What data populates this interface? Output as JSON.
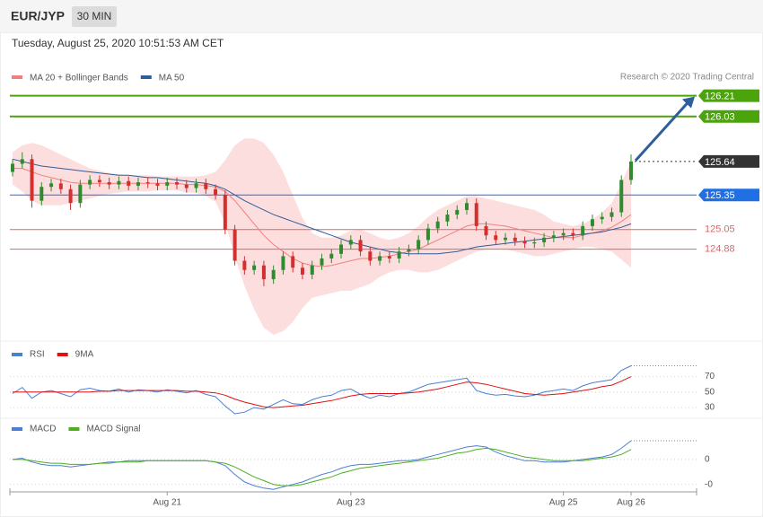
{
  "chart_data": [
    {
      "type": "candlestick",
      "title": "EUR/JYP",
      "timeframe": "30 MIN",
      "subtitle": "Tuesday, August 25, 2020 10:51:53 AM CET",
      "source": "Research © 2020 Trading Central",
      "categories": [
        null,
        null,
        null,
        null,
        null,
        null,
        null,
        null,
        null,
        null,
        null,
        null,
        null,
        null,
        null,
        null,
        "Aug 21",
        null,
        null,
        null,
        null,
        null,
        null,
        null,
        null,
        null,
        null,
        null,
        null,
        null,
        null,
        null,
        null,
        null,
        null,
        "Aug 23",
        null,
        null,
        null,
        null,
        null,
        null,
        null,
        null,
        null,
        null,
        null,
        null,
        null,
        null,
        null,
        null,
        null,
        null,
        null,
        null,
        null,
        "Aug 25",
        null,
        null,
        null,
        null,
        null,
        null,
        "Aug 26"
      ],
      "open": [
        125.55,
        125.62,
        125.66,
        125.3,
        125.42,
        125.45,
        125.4,
        125.28,
        125.44,
        125.48,
        125.46,
        125.44,
        125.47,
        125.43,
        125.46,
        125.45,
        125.43,
        125.46,
        125.44,
        125.41,
        125.45,
        125.4,
        125.35,
        125.05,
        124.78,
        124.7,
        124.74,
        124.62,
        124.7,
        124.82,
        124.72,
        124.66,
        124.74,
        124.8,
        124.84,
        124.92,
        124.96,
        124.86,
        124.78,
        124.82,
        124.8,
        124.86,
        124.88,
        124.96,
        125.06,
        125.12,
        125.18,
        125.22,
        125.28,
        125.08,
        125.0,
        124.96,
        124.98,
        124.95,
        124.93,
        124.94,
        124.98,
        125.0,
        125.02,
        125.0,
        125.08,
        125.14,
        125.16,
        125.2,
        125.48
      ],
      "high": [
        125.66,
        125.72,
        125.7,
        125.46,
        125.49,
        125.49,
        125.44,
        125.48,
        125.52,
        125.52,
        125.5,
        125.51,
        125.51,
        125.5,
        125.5,
        125.49,
        125.5,
        125.5,
        125.48,
        125.49,
        125.49,
        125.44,
        125.39,
        125.09,
        124.82,
        124.78,
        124.78,
        124.74,
        124.86,
        124.86,
        124.76,
        124.78,
        124.84,
        124.88,
        124.96,
        125.0,
        125.0,
        124.9,
        124.86,
        124.86,
        124.9,
        124.92,
        125.0,
        125.1,
        125.16,
        125.22,
        125.26,
        125.32,
        125.32,
        125.12,
        125.04,
        125.02,
        125.02,
        124.99,
        124.98,
        125.02,
        125.04,
        125.06,
        125.06,
        125.12,
        125.18,
        125.2,
        125.24,
        125.52,
        125.7
      ],
      "low": [
        125.51,
        125.58,
        125.24,
        125.26,
        125.38,
        125.36,
        125.22,
        125.24,
        125.4,
        125.42,
        125.4,
        125.4,
        125.39,
        125.39,
        125.41,
        125.39,
        125.39,
        125.4,
        125.37,
        125.37,
        125.36,
        125.31,
        125.01,
        124.74,
        124.66,
        124.66,
        124.56,
        124.58,
        124.66,
        124.68,
        124.62,
        124.62,
        124.7,
        124.76,
        124.8,
        124.88,
        124.82,
        124.74,
        124.74,
        124.76,
        124.76,
        124.82,
        124.84,
        124.92,
        125.02,
        125.08,
        125.14,
        125.18,
        125.04,
        124.96,
        124.92,
        124.92,
        124.91,
        124.89,
        124.89,
        124.9,
        124.94,
        124.96,
        124.96,
        124.96,
        125.04,
        125.1,
        125.12,
        125.16,
        125.44
      ],
      "close": [
        125.62,
        125.66,
        125.3,
        125.42,
        125.45,
        125.4,
        125.28,
        125.44,
        125.48,
        125.46,
        125.44,
        125.47,
        125.43,
        125.46,
        125.45,
        125.43,
        125.46,
        125.44,
        125.41,
        125.45,
        125.4,
        125.35,
        125.05,
        124.78,
        124.7,
        124.74,
        124.62,
        124.7,
        124.82,
        124.72,
        124.66,
        124.74,
        124.8,
        124.84,
        124.92,
        124.96,
        124.86,
        124.78,
        124.82,
        124.8,
        124.86,
        124.88,
        124.96,
        125.06,
        125.12,
        125.18,
        125.22,
        125.28,
        125.08,
        125.0,
        124.96,
        124.98,
        124.95,
        124.93,
        124.94,
        124.98,
        125.0,
        125.02,
        125.0,
        125.08,
        125.14,
        125.16,
        125.2,
        125.48,
        125.64
      ],
      "up_color": "#2e8b2e",
      "down_color": "#d32f2f",
      "series": [
        {
          "name": "MA 20 + Bollinger Bands",
          "color": "#f08080",
          "band_color": "#fddede",
          "values": [
            125.58,
            125.58,
            125.55,
            125.52,
            125.5,
            125.48,
            125.46,
            125.45,
            125.45,
            125.45,
            125.45,
            125.45,
            125.45,
            125.45,
            125.45,
            125.45,
            125.45,
            125.45,
            125.44,
            125.44,
            125.43,
            125.42,
            125.38,
            125.3,
            125.2,
            125.1,
            125.0,
            124.92,
            124.86,
            124.8,
            124.76,
            124.74,
            124.73,
            124.74,
            124.76,
            124.78,
            124.8,
            124.8,
            124.81,
            124.82,
            124.84,
            124.86,
            124.88,
            124.92,
            124.96,
            125.0,
            125.04,
            125.08,
            125.1,
            125.1,
            125.09,
            125.08,
            125.06,
            125.04,
            125.02,
            125.0,
            124.98,
            124.98,
            124.98,
            125.0,
            125.02,
            125.04,
            125.07,
            125.12,
            125.18
          ],
          "upper": [
            125.72,
            125.78,
            125.8,
            125.78,
            125.74,
            125.7,
            125.66,
            125.62,
            125.58,
            125.56,
            125.54,
            125.53,
            125.52,
            125.52,
            125.52,
            125.51,
            125.51,
            125.51,
            125.51,
            125.51,
            125.52,
            125.55,
            125.65,
            125.78,
            125.84,
            125.84,
            125.8,
            125.7,
            125.55,
            125.35,
            125.15,
            125.02,
            124.98,
            124.98,
            125.0,
            125.04,
            125.05,
            125.02,
            124.98,
            124.96,
            124.98,
            125.02,
            125.08,
            125.16,
            125.22,
            125.26,
            125.3,
            125.34,
            125.34,
            125.32,
            125.3,
            125.28,
            125.26,
            125.24,
            125.22,
            125.18,
            125.12,
            125.1,
            125.08,
            125.1,
            125.14,
            125.2,
            125.28,
            125.45,
            125.64
          ],
          "lower": [
            125.44,
            125.38,
            125.3,
            125.26,
            125.26,
            125.26,
            125.28,
            125.3,
            125.32,
            125.34,
            125.36,
            125.37,
            125.38,
            125.38,
            125.38,
            125.39,
            125.39,
            125.39,
            125.37,
            125.37,
            125.34,
            125.29,
            125.11,
            124.82,
            124.56,
            124.36,
            124.2,
            124.14,
            124.17,
            124.25,
            124.37,
            124.46,
            124.48,
            124.5,
            124.52,
            124.52,
            124.55,
            124.58,
            124.64,
            124.68,
            124.7,
            124.7,
            124.68,
            124.68,
            124.7,
            124.74,
            124.78,
            124.82,
            124.86,
            124.88,
            124.88,
            124.88,
            124.86,
            124.84,
            124.82,
            124.82,
            124.84,
            124.86,
            124.88,
            124.9,
            124.9,
            124.88,
            124.86,
            124.79,
            124.72
          ]
        },
        {
          "name": "MA 50",
          "color": "#2f5d99",
          "values": [
            125.66,
            125.64,
            125.62,
            125.6,
            125.59,
            125.58,
            125.57,
            125.56,
            125.55,
            125.54,
            125.53,
            125.52,
            125.52,
            125.51,
            125.5,
            125.5,
            125.49,
            125.48,
            125.47,
            125.46,
            125.45,
            125.43,
            125.4,
            125.35,
            125.3,
            125.26,
            125.22,
            125.18,
            125.15,
            125.12,
            125.09,
            125.06,
            125.03,
            125.0,
            124.97,
            124.94,
            124.92,
            124.9,
            124.88,
            124.86,
            124.85,
            124.84,
            124.84,
            124.84,
            124.84,
            124.85,
            124.86,
            124.88,
            124.9,
            124.91,
            124.92,
            124.93,
            124.94,
            124.95,
            124.96,
            124.97,
            124.98,
            124.99,
            125.0,
            125.01,
            125.02,
            125.03,
            125.05,
            125.07,
            125.1
          ]
        }
      ],
      "levels": [
        {
          "value": 126.21,
          "color": "#4ca40c",
          "tag": true
        },
        {
          "value": 126.03,
          "color": "#4ca40c",
          "tag": true
        },
        {
          "value": 125.64,
          "color": "#333333",
          "tag": true,
          "dotted": true
        },
        {
          "value": 125.35,
          "color": "#1f6fe5",
          "tag": true
        },
        {
          "value": 125.05,
          "color": "#e06666",
          "tag": false
        },
        {
          "value": 124.88,
          "color": "#e06666",
          "tag": false
        }
      ],
      "ylim": [
        124.1,
        126.3
      ]
    },
    {
      "type": "line",
      "series": [
        {
          "name": "RSI",
          "color": "#4a7fd6",
          "values": [
            48,
            56,
            42,
            50,
            52,
            48,
            44,
            53,
            55,
            52,
            51,
            54,
            50,
            53,
            52,
            50,
            53,
            51,
            49,
            52,
            47,
            44,
            32,
            22,
            24,
            30,
            28,
            34,
            40,
            35,
            34,
            40,
            44,
            46,
            52,
            54,
            47,
            42,
            46,
            44,
            48,
            50,
            55,
            60,
            62,
            64,
            66,
            68,
            52,
            48,
            46,
            47,
            45,
            44,
            46,
            50,
            52,
            54,
            52,
            58,
            62,
            64,
            66,
            78,
            84
          ]
        },
        {
          "name": "9MA",
          "color": "#e01010",
          "values": [
            50,
            50,
            50,
            50,
            50,
            50,
            50,
            50,
            50,
            51,
            51,
            52,
            52,
            52,
            52,
            52,
            52,
            52,
            51,
            51,
            50,
            49,
            46,
            41,
            37,
            34,
            31,
            30,
            31,
            32,
            33,
            35,
            37,
            39,
            42,
            45,
            47,
            48,
            48,
            48,
            48,
            49,
            50,
            52,
            54,
            57,
            60,
            63,
            62,
            60,
            57,
            54,
            51,
            48,
            47,
            46,
            47,
            48,
            50,
            52,
            54,
            57,
            59,
            64,
            70
          ]
        }
      ],
      "ylim": [
        15,
        95
      ],
      "yticks": [
        30,
        50,
        70
      ]
    },
    {
      "type": "line",
      "series": [
        {
          "name": "MACD",
          "color": "#4a7fd6",
          "values": [
            0.0,
            0.01,
            -0.02,
            -0.04,
            -0.05,
            -0.05,
            -0.06,
            -0.05,
            -0.04,
            -0.03,
            -0.02,
            -0.02,
            -0.01,
            -0.01,
            -0.01,
            -0.01,
            -0.01,
            -0.01,
            -0.01,
            -0.01,
            -0.01,
            -0.02,
            -0.05,
            -0.12,
            -0.18,
            -0.21,
            -0.23,
            -0.24,
            -0.22,
            -0.2,
            -0.18,
            -0.15,
            -0.12,
            -0.1,
            -0.07,
            -0.05,
            -0.04,
            -0.04,
            -0.03,
            -0.02,
            -0.01,
            -0.01,
            0.0,
            0.02,
            0.04,
            0.06,
            0.08,
            0.1,
            0.11,
            0.1,
            0.06,
            0.03,
            0.01,
            -0.01,
            -0.01,
            -0.02,
            -0.02,
            -0.02,
            -0.01,
            0.0,
            0.01,
            0.02,
            0.04,
            0.09,
            0.15
          ]
        },
        {
          "name": "MACD Signal",
          "color": "#4caf22",
          "values": [
            0.0,
            0.0,
            -0.01,
            -0.02,
            -0.03,
            -0.03,
            -0.04,
            -0.04,
            -0.04,
            -0.03,
            -0.03,
            -0.02,
            -0.02,
            -0.02,
            -0.01,
            -0.01,
            -0.01,
            -0.01,
            -0.01,
            -0.01,
            -0.01,
            -0.02,
            -0.03,
            -0.06,
            -0.1,
            -0.14,
            -0.17,
            -0.2,
            -0.21,
            -0.21,
            -0.2,
            -0.18,
            -0.16,
            -0.14,
            -0.11,
            -0.09,
            -0.07,
            -0.06,
            -0.05,
            -0.04,
            -0.03,
            -0.02,
            -0.01,
            0.0,
            0.01,
            0.03,
            0.05,
            0.06,
            0.08,
            0.09,
            0.08,
            0.06,
            0.04,
            0.02,
            0.01,
            0.0,
            -0.01,
            -0.01,
            -0.01,
            -0.01,
            0.0,
            0.01,
            0.02,
            0.04,
            0.08
          ]
        }
      ],
      "ylim": [
        -0.26,
        0.28
      ],
      "yticks": [
        0,
        {
          "value": -0.2,
          "label": "-0"
        }
      ]
    }
  ]
}
